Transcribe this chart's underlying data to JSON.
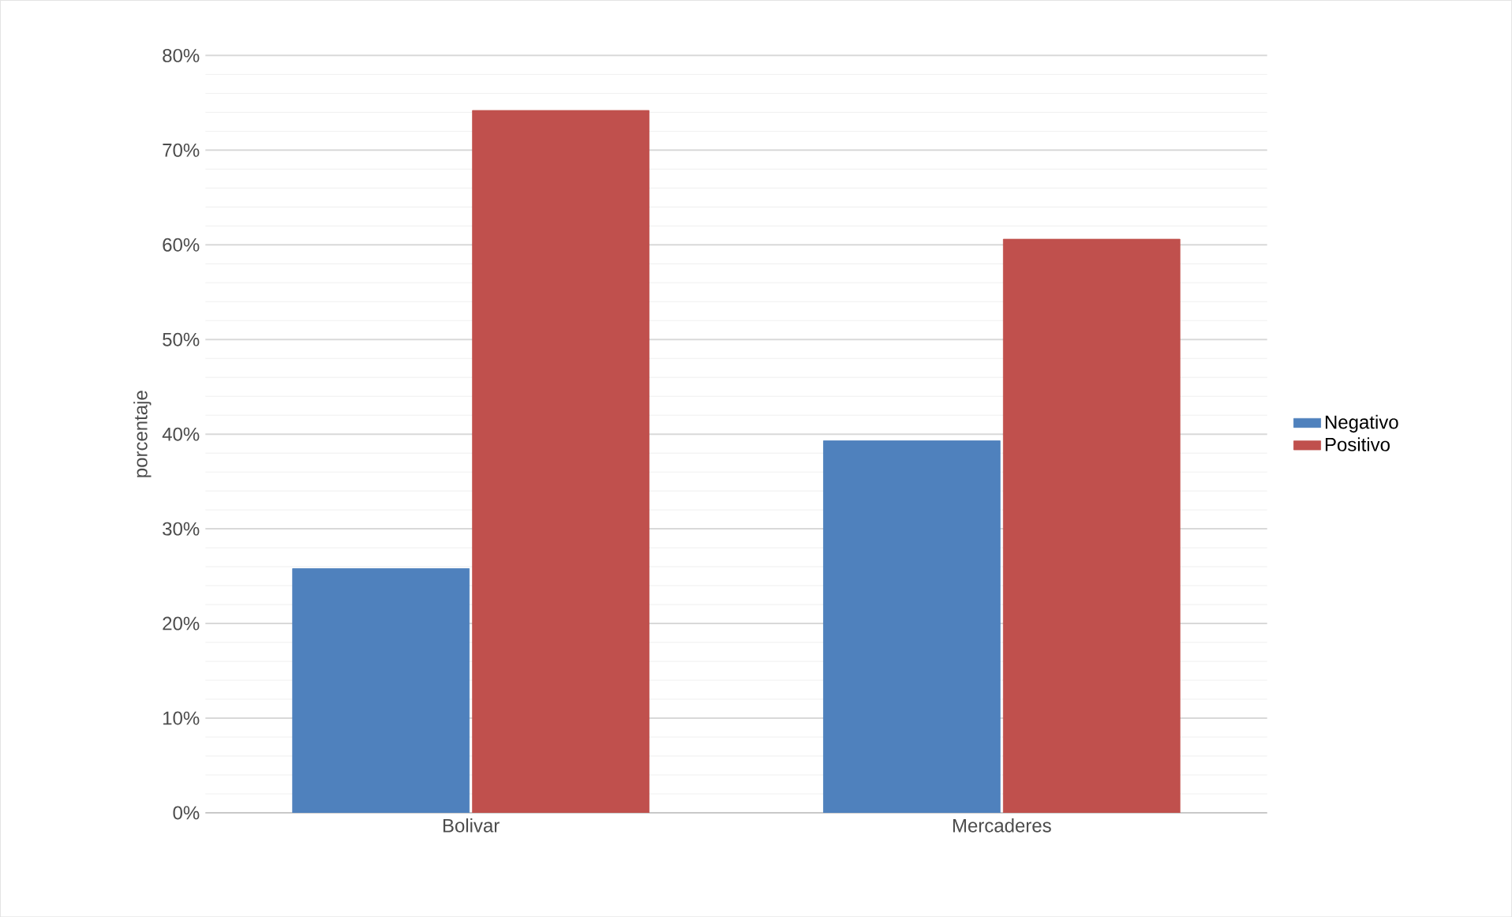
{
  "chart_data": {
    "type": "bar",
    "ylabel": "porcentaje",
    "categories": [
      "Bolivar",
      "Mercaderes"
    ],
    "series": [
      {
        "name": "Negativo",
        "color": "#4f81bd",
        "values": [
          25.8,
          39.3
        ]
      },
      {
        "name": "Positivo",
        "color": "#c0504d",
        "values": [
          74.2,
          60.6
        ]
      }
    ],
    "ylim": [
      0,
      80
    ],
    "yticks": [
      {
        "value": 0,
        "label": "0%"
      },
      {
        "value": 10,
        "label": "10%"
      },
      {
        "value": 20,
        "label": "20%"
      },
      {
        "value": 30,
        "label": "30%"
      },
      {
        "value": 40,
        "label": "40%"
      },
      {
        "value": 50,
        "label": "50%"
      },
      {
        "value": 60,
        "label": "60%"
      },
      {
        "value": 70,
        "label": "70%"
      },
      {
        "value": 80,
        "label": "80%"
      }
    ],
    "grid": "y",
    "legend": "right"
  }
}
